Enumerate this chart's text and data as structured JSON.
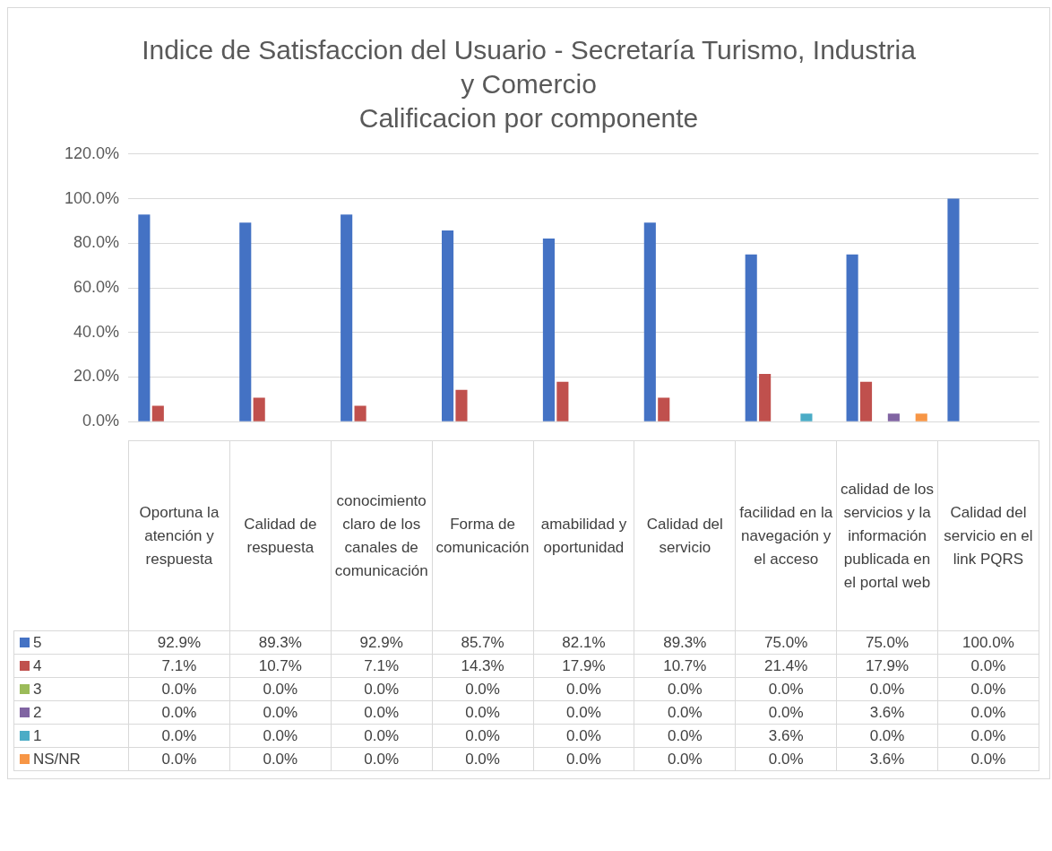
{
  "chart_data": {
    "type": "bar",
    "title": "Indice de Satisfaccion del Usuario - Secretaría Turismo, Industria y Comercio",
    "subtitle": "Calificacion por componente",
    "categories": [
      "Oportuna la atención y respuesta",
      "Calidad de respuesta",
      "conocimiento claro de los canales de comunicación",
      "Forma de comunicación",
      "amabilidad y oportunidad",
      "Calidad del servicio",
      "facilidad en la navegación y el acceso",
      "calidad de los servicios y la información publicada en el portal web",
      "Calidad del servicio en el link PQRS"
    ],
    "series": [
      {
        "name": "5",
        "color": "#4472c4",
        "values": [
          92.9,
          89.3,
          92.9,
          85.7,
          82.1,
          89.3,
          75.0,
          75.0,
          100.0
        ],
        "value_labels": [
          "92.9%",
          "89.3%",
          "92.9%",
          "85.7%",
          "82.1%",
          "89.3%",
          "75.0%",
          "75.0%",
          "100.0%"
        ]
      },
      {
        "name": "4",
        "color": "#c0504d",
        "values": [
          7.1,
          10.7,
          7.1,
          14.3,
          17.9,
          10.7,
          21.4,
          17.9,
          0.0
        ],
        "value_labels": [
          "7.1%",
          "10.7%",
          "7.1%",
          "14.3%",
          "17.9%",
          "10.7%",
          "21.4%",
          "17.9%",
          "0.0%"
        ]
      },
      {
        "name": "3",
        "color": "#9bbb59",
        "values": [
          0,
          0,
          0,
          0,
          0,
          0,
          0,
          0,
          0
        ],
        "value_labels": [
          "0.0%",
          "0.0%",
          "0.0%",
          "0.0%",
          "0.0%",
          "0.0%",
          "0.0%",
          "0.0%",
          "0.0%"
        ]
      },
      {
        "name": "2",
        "color": "#8064a2",
        "values": [
          0,
          0,
          0,
          0,
          0,
          0,
          0,
          3.6,
          0
        ],
        "value_labels": [
          "0.0%",
          "0.0%",
          "0.0%",
          "0.0%",
          "0.0%",
          "0.0%",
          "0.0%",
          "3.6%",
          "0.0%"
        ]
      },
      {
        "name": "1",
        "color": "#4bacc6",
        "values": [
          0,
          0,
          0,
          0,
          0,
          0,
          3.6,
          0,
          0
        ],
        "value_labels": [
          "0.0%",
          "0.0%",
          "0.0%",
          "0.0%",
          "0.0%",
          "0.0%",
          "3.6%",
          "0.0%",
          "0.0%"
        ]
      },
      {
        "name": "NS/NR",
        "color": "#f79646",
        "values": [
          0,
          0,
          0,
          0,
          0,
          0,
          0,
          3.6,
          0
        ],
        "value_labels": [
          "0.0%",
          "0.0%",
          "0.0%",
          "0.0%",
          "0.0%",
          "0.0%",
          "0.0%",
          "3.6%",
          "0.0%"
        ]
      }
    ],
    "ylim": [
      0,
      120
    ],
    "yticks": [
      {
        "value": 0,
        "label": "0.0%"
      },
      {
        "value": 20,
        "label": "20.0%"
      },
      {
        "value": 40,
        "label": "40.0%"
      },
      {
        "value": 60,
        "label": "60.0%"
      },
      {
        "value": 80,
        "label": "80.0%"
      },
      {
        "value": 100,
        "label": "100.0%"
      },
      {
        "value": 120,
        "label": "120.0%"
      }
    ],
    "grid": "y",
    "legend": "bottom"
  }
}
